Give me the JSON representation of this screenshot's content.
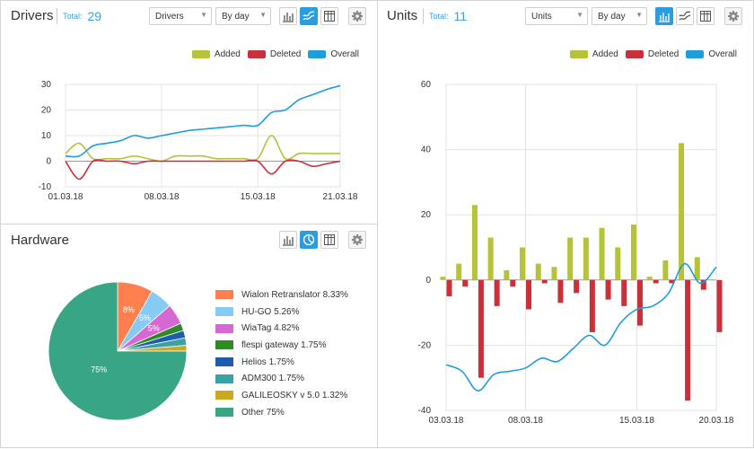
{
  "drivers": {
    "title": "Drivers",
    "total_label": "Total:",
    "total_value": "29",
    "entity_select": "Drivers",
    "period_select": "By day",
    "active_view": "line"
  },
  "units": {
    "title": "Units",
    "total_label": "Total:",
    "total_value": "11",
    "entity_select": "Units",
    "period_select": "By day",
    "active_view": "bar"
  },
  "hardware": {
    "title": "Hardware",
    "active_view": "pie"
  },
  "legend": {
    "added": "Added",
    "deleted": "Deleted",
    "overall": "Overall"
  },
  "colors": {
    "added": "#b5c23a",
    "deleted": "#c9303a",
    "overall": "#1f9ddb",
    "accent": "#2c9ce0"
  },
  "icons": [
    "bar-chart-icon",
    "line-chart-icon",
    "pie-chart-icon",
    "table-icon",
    "gear-icon",
    "chevron-down-icon"
  ],
  "chart_data": [
    {
      "id": "drivers",
      "type": "line",
      "x": [
        "01.03.18",
        "02.03.18",
        "03.03.18",
        "04.03.18",
        "05.03.18",
        "06.03.18",
        "07.03.18",
        "08.03.18",
        "09.03.18",
        "10.03.18",
        "11.03.18",
        "12.03.18",
        "13.03.18",
        "14.03.18",
        "15.03.18",
        "16.03.18",
        "17.03.18",
        "18.03.18",
        "19.03.18",
        "20.03.18",
        "21.03.18"
      ],
      "xticks": [
        "01.03.18",
        "08.03.18",
        "15.03.18",
        "21.03.18"
      ],
      "yticks": [
        -10,
        0,
        10,
        20,
        30
      ],
      "ylim": [
        -10,
        30
      ],
      "grid": true,
      "legend_position": "top-right",
      "series": [
        {
          "name": "Added",
          "values": [
            3,
            7,
            1,
            1,
            1,
            2,
            1,
            0,
            2,
            2,
            2,
            1,
            1,
            1,
            1,
            10,
            1,
            3,
            3,
            3,
            3
          ]
        },
        {
          "name": "Deleted",
          "values": [
            0,
            -7,
            0,
            0,
            0,
            -1,
            0,
            0,
            0,
            0,
            0,
            0,
            0,
            0,
            0,
            -5,
            0,
            0,
            -2,
            -1,
            0
          ]
        },
        {
          "name": "Overall",
          "values": [
            2,
            2,
            6,
            7,
            8,
            10,
            9,
            10,
            11,
            12,
            12.5,
            13,
            13.5,
            14,
            14,
            19,
            20,
            24,
            26,
            28,
            29.5
          ]
        }
      ]
    },
    {
      "id": "units",
      "type": "bar",
      "x": [
        "03.03.18",
        "04.03.18",
        "05.03.18",
        "06.03.18",
        "07.03.18",
        "08.03.18",
        "09.03.18",
        "10.03.18",
        "11.03.18",
        "12.03.18",
        "13.03.18",
        "14.03.18",
        "15.03.18",
        "16.03.18",
        "17.03.18",
        "18.03.18",
        "19.03.18",
        "20.03.18"
      ],
      "xticks": [
        "03.03.18",
        "08.03.18",
        "15.03.18",
        "20.03.18"
      ],
      "yticks": [
        -40,
        -20,
        0,
        20,
        40,
        60
      ],
      "ylim": [
        -40,
        60
      ],
      "grid": true,
      "legend_position": "top-right",
      "series": [
        {
          "name": "Added",
          "values": [
            1,
            5,
            23,
            13,
            3,
            10,
            5,
            4,
            13,
            13,
            16,
            10,
            17,
            1,
            6,
            42,
            7,
            0
          ]
        },
        {
          "name": "Deleted",
          "values": [
            -5,
            -2,
            -30,
            -8,
            -2,
            -9,
            -1,
            -7,
            -4,
            -16,
            -6,
            -8,
            -14,
            -1,
            -1,
            -37,
            -3,
            -16
          ]
        },
        {
          "name": "Overall",
          "values": [
            -26,
            -28,
            -34,
            -29,
            -28,
            -27,
            -24,
            -25,
            -21,
            -17,
            -20,
            -13,
            -9,
            -8,
            -4,
            5,
            -1,
            4
          ]
        }
      ]
    },
    {
      "id": "hardware",
      "type": "pie",
      "slices": [
        {
          "label": "Wialon Retranslator 8.33%",
          "value": 8.33,
          "color": "#ff7f4f",
          "data_label": "8%"
        },
        {
          "label": "HU-GO 5.26%",
          "value": 5.26,
          "color": "#86cbf4",
          "data_label": "5%"
        },
        {
          "label": "WiaTag 4.82%",
          "value": 4.82,
          "color": "#d768d3",
          "data_label": "5%"
        },
        {
          "label": "flespi gateway 1.75%",
          "value": 1.75,
          "color": "#2e8a24",
          "data_label": ""
        },
        {
          "label": "Helios 1.75%",
          "value": 1.75,
          "color": "#1e5cad",
          "data_label": ""
        },
        {
          "label": "ADM300 1.75%",
          "value": 1.75,
          "color": "#3aa1a6",
          "data_label": ""
        },
        {
          "label": "GALILEOSKY v 5.0 1.32%",
          "value": 1.32,
          "color": "#c9a91e",
          "data_label": ""
        },
        {
          "label": "Other 75%",
          "value": 75,
          "color": "#38a585",
          "data_label": "75%"
        }
      ]
    }
  ]
}
